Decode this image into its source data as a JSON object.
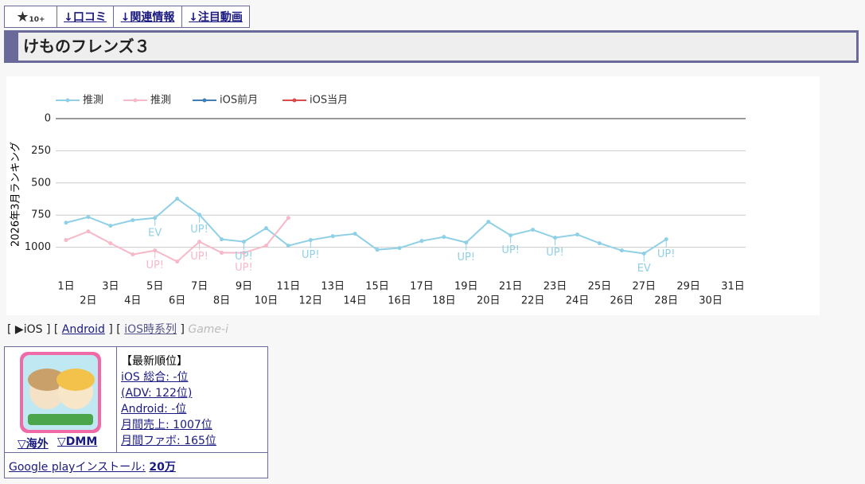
{
  "nav": {
    "tabs": [
      "★",
      "10+",
      "↓口コミ",
      "↓関連情報",
      "↓注目動画"
    ]
  },
  "header": {
    "title": "けものフレンズ３"
  },
  "chart_data": {
    "type": "line",
    "y_label": "2026年3月ランキング",
    "categories": [
      "1日",
      "2日",
      "3日",
      "4日",
      "5日",
      "6日",
      "7日",
      "8日",
      "9日",
      "10日",
      "11日",
      "12日",
      "13日",
      "14日",
      "15日",
      "16日",
      "17日",
      "18日",
      "19日",
      "20日",
      "21日",
      "22日",
      "23日",
      "24日",
      "25日",
      "26日",
      "27日",
      "28日",
      "29日",
      "30日",
      "31日"
    ],
    "ylim": [
      0,
      1250
    ],
    "y_inverted": true,
    "yticks": [
      0,
      250,
      500,
      750,
      1000
    ],
    "grid": true,
    "series": [
      {
        "name": "推測",
        "color": "#8fd0e6",
        "values": [
          809,
          765,
          833,
          790,
          772,
          623,
          747,
          938,
          957,
          852,
          988,
          944,
          914,
          895,
          1019,
          1006,
          951,
          920,
          963,
          802,
          907,
          864,
          926,
          901,
          969,
          1025,
          1049,
          938,
          null,
          null,
          null
        ]
      },
      {
        "name": "推測",
        "color": "#f7b8c8",
        "values": [
          944,
          877,
          969,
          1056,
          1025,
          1111,
          957,
          1043,
          1043,
          988,
          772,
          null,
          null,
          null,
          null,
          null,
          null,
          null,
          null,
          null,
          null,
          null,
          null,
          null,
          null,
          null,
          null,
          null,
          null,
          null,
          null
        ]
      },
      {
        "name": "iOS前月",
        "color": "#3f7fb5",
        "values": [
          null,
          null,
          null,
          null,
          null,
          null,
          null,
          null,
          null,
          null,
          null,
          null,
          null,
          null,
          null,
          null,
          null,
          null,
          null,
          null,
          null,
          null,
          null,
          null,
          null,
          null,
          null,
          null,
          null,
          null,
          null
        ]
      },
      {
        "name": "iOS当月",
        "color": "#dc4b4b",
        "values": [
          null,
          null,
          null,
          null,
          null,
          null,
          null,
          null,
          null,
          null,
          null,
          null,
          null,
          null,
          null,
          null,
          null,
          null,
          null,
          null,
          null,
          null,
          null,
          null,
          null,
          null,
          null,
          null,
          null,
          null,
          null
        ]
      }
    ],
    "annotations": [
      {
        "text": "EV",
        "category": "5日",
        "series": 0
      },
      {
        "text": "UP!",
        "category": "7日",
        "series": 0
      },
      {
        "text": "UP!",
        "category": "9日",
        "series": 0
      },
      {
        "text": "UP!",
        "category": "12日",
        "series": 0
      },
      {
        "text": "UP!",
        "category": "19日",
        "series": 0
      },
      {
        "text": "UP!",
        "category": "21日",
        "series": 0
      },
      {
        "text": "UP!",
        "category": "23日",
        "series": 0
      },
      {
        "text": "EV",
        "category": "27日",
        "series": 0
      },
      {
        "text": "UP!",
        "category": "28日",
        "series": 0
      },
      {
        "text": "UP!",
        "category": "5日",
        "series": 1
      },
      {
        "text": "UP!",
        "category": "7日",
        "series": 1
      },
      {
        "text": "UP!",
        "category": "9日",
        "series": 1
      }
    ]
  },
  "links": {
    "open": "[",
    "ios": "▶iOS",
    "sep1": "] [",
    "android": "Android",
    "sep2": "] [",
    "timeline": "iOS時系列",
    "close": "]",
    "gamei": "Game-i"
  },
  "info": {
    "overseas": "▽海外",
    "dmm": "▽DMM",
    "heading": "【最新順位】",
    "rows": [
      "iOS 総合: -位",
      "(ADV: 122位)",
      "Android: -位",
      "月間売上: 1007位",
      "月間ファボ: 165位"
    ],
    "install_label": "Google playインストール:",
    "install_value": "20万"
  }
}
